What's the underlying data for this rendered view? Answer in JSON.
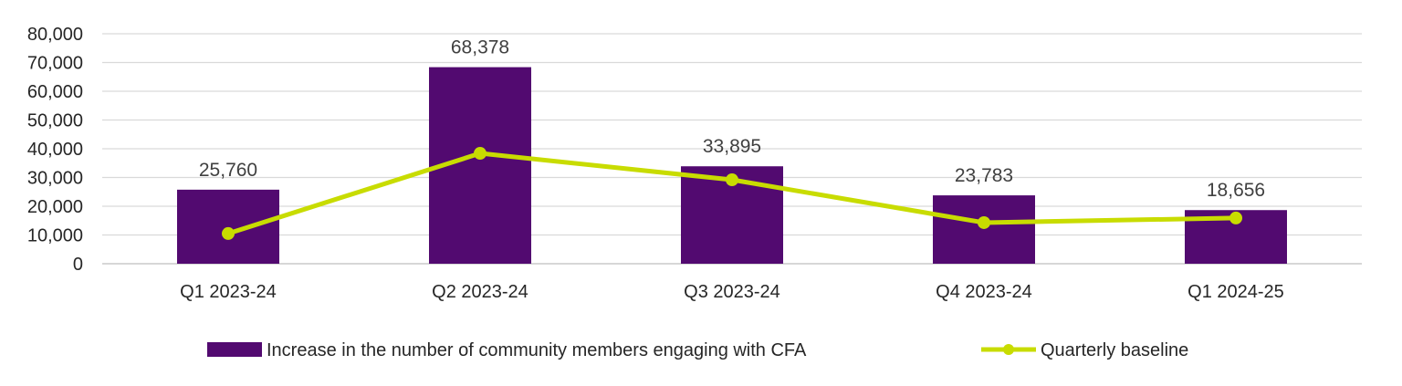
{
  "chart_data": {
    "type": "bar",
    "title": "",
    "xlabel": "",
    "ylabel": "",
    "categories": [
      "Q1 2023-24",
      "Q2 2023-24",
      "Q3 2023-24",
      "Q4 2023-24",
      "Q1 2024-25"
    ],
    "series": [
      {
        "name": "Increase in the number of community members engaging with CFA",
        "type": "bar",
        "color": "#520A70",
        "values": [
          25760,
          68378,
          33895,
          23783,
          18656
        ],
        "labels": [
          "25,760",
          "68,378",
          "33,895",
          "23,783",
          "18,656"
        ]
      },
      {
        "name": "Quarterly baseline",
        "type": "line",
        "color": "#C8DC00",
        "values": [
          10500,
          38400,
          29200,
          14300,
          15900
        ]
      }
    ],
    "ylim": [
      0,
      80000
    ],
    "yticks": [
      0,
      10000,
      20000,
      30000,
      40000,
      50000,
      60000,
      70000,
      80000
    ],
    "ytick_labels": [
      "0",
      "10,000",
      "20,000",
      "30,000",
      "40,000",
      "50,000",
      "60,000",
      "70,000",
      "80,000"
    ],
    "grid": true,
    "legend_position": "bottom"
  }
}
